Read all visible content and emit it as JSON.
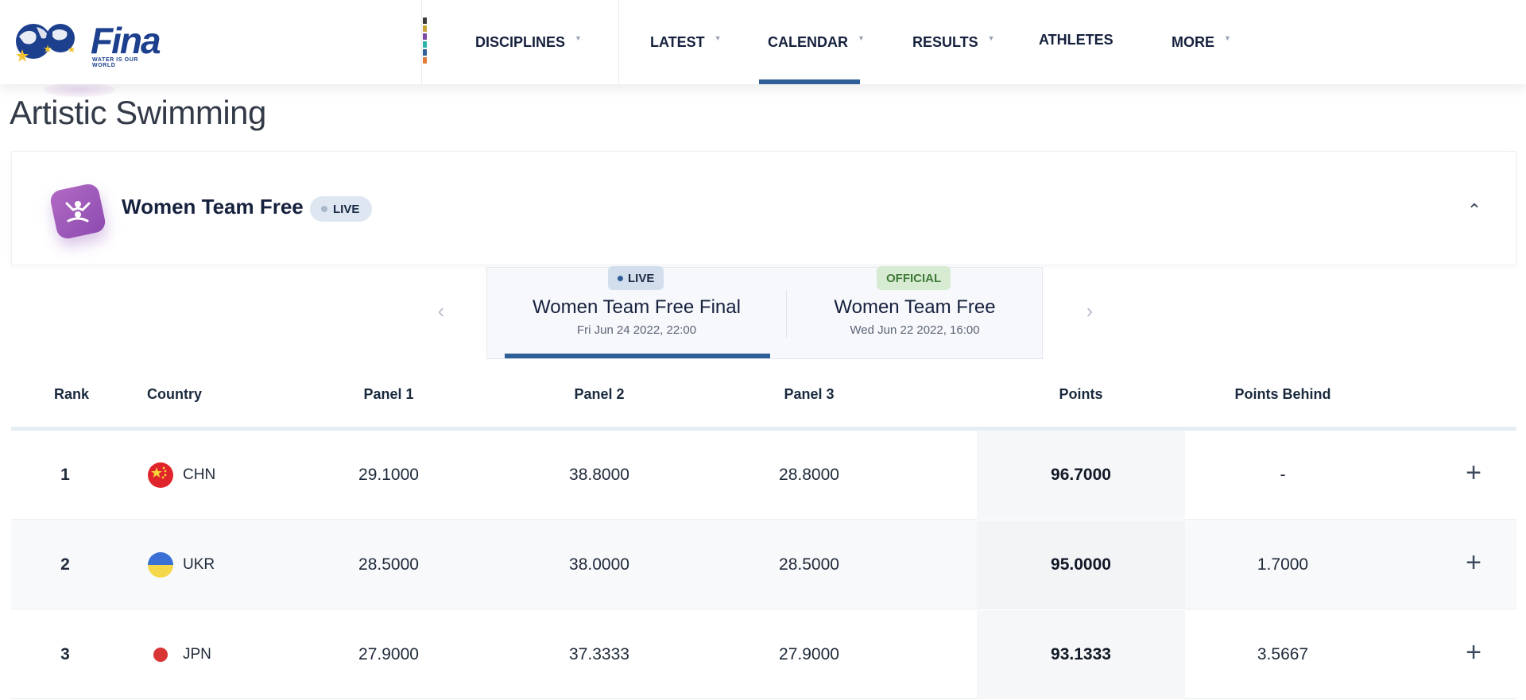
{
  "header": {
    "logo_text": "Fina",
    "logo_tagline": "WATER IS OUR WORLD",
    "nav": [
      {
        "label": "DISCIPLINES",
        "has_caret": true
      },
      {
        "label": "LATEST",
        "has_caret": true
      },
      {
        "label": "CALENDAR",
        "has_caret": true,
        "active": true
      },
      {
        "label": "RESULTS",
        "has_caret": true
      },
      {
        "label": "ATHLETES",
        "has_caret": false
      },
      {
        "label": "MORE",
        "has_caret": true
      }
    ],
    "color_bar": [
      "#3b3b3b",
      "#c9a23a",
      "#7b4aa6",
      "#2bb3a8",
      "#2f5f98",
      "#e07b39"
    ]
  },
  "page_title": "Artistic Swimming",
  "event": {
    "name": "Women Team Free",
    "status": "LIVE",
    "icon": "artistic-swimming-icon"
  },
  "heats": [
    {
      "badge": "LIVE",
      "name": "Women Team Free Final",
      "date": "Fri Jun 24 2022, 22:00",
      "active": true
    },
    {
      "badge": "OFFICIAL",
      "name": "Women Team Free",
      "date": "Wed Jun 22 2022, 16:00",
      "active": false
    }
  ],
  "table": {
    "columns": [
      "Rank",
      "Country",
      "Panel 1",
      "Panel 2",
      "Panel 3",
      "Points",
      "Points Behind"
    ],
    "rows": [
      {
        "rank": "1",
        "country": "CHN",
        "panel1": "29.1000",
        "panel2": "38.8000",
        "panel3": "28.8000",
        "points": "96.7000",
        "behind": "-"
      },
      {
        "rank": "2",
        "country": "UKR",
        "panel1": "28.5000",
        "panel2": "38.0000",
        "panel3": "28.5000",
        "points": "95.0000",
        "behind": "1.7000"
      },
      {
        "rank": "3",
        "country": "JPN",
        "panel1": "27.9000",
        "panel2": "37.3333",
        "panel3": "27.9000",
        "points": "93.1333",
        "behind": "3.5667"
      }
    ]
  },
  "colors": {
    "accent": "#2f5f98",
    "live_pill": "#dde6f1",
    "official_pill": "#d7ebd2",
    "event_icon": "#9b58b8"
  }
}
